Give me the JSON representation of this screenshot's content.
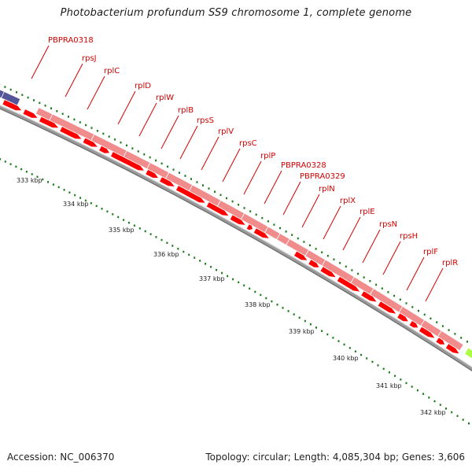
{
  "title": "Photobacterium profundum SS9 chromosome 1, complete genome",
  "footer": {
    "accession": "Accession: NC_006370",
    "topology": "Topology: circular; Length: 4,085,304 bp; Genes: 3,606"
  },
  "colors": {
    "gene_red": "#ff0000",
    "gene_pink": "#f08c8c",
    "gene_purple": "#55559a",
    "gene_green": "#aaff44",
    "tick_green": "#1a7a1a",
    "backbone": "#888888",
    "label_red": "#d40000"
  },
  "gene_labels": [
    "PBPRA0318",
    "rpsJ",
    "rplC",
    "rplD",
    "rplW",
    "rplB",
    "rpsS",
    "rplV",
    "rpsC",
    "rplP",
    "PBPRA0328",
    "PBPRA0329",
    "rplN",
    "rplX",
    "rplE",
    "rpsN",
    "rpsH",
    "rplF",
    "rplR"
  ],
  "kbp_labels": [
    "333 kbp",
    "334 kbp",
    "335 kbp",
    "336 kbp",
    "337 kbp",
    "338 kbp",
    "339 kbp",
    "340 kbp",
    "341 kbp",
    "342 kbp"
  ]
}
